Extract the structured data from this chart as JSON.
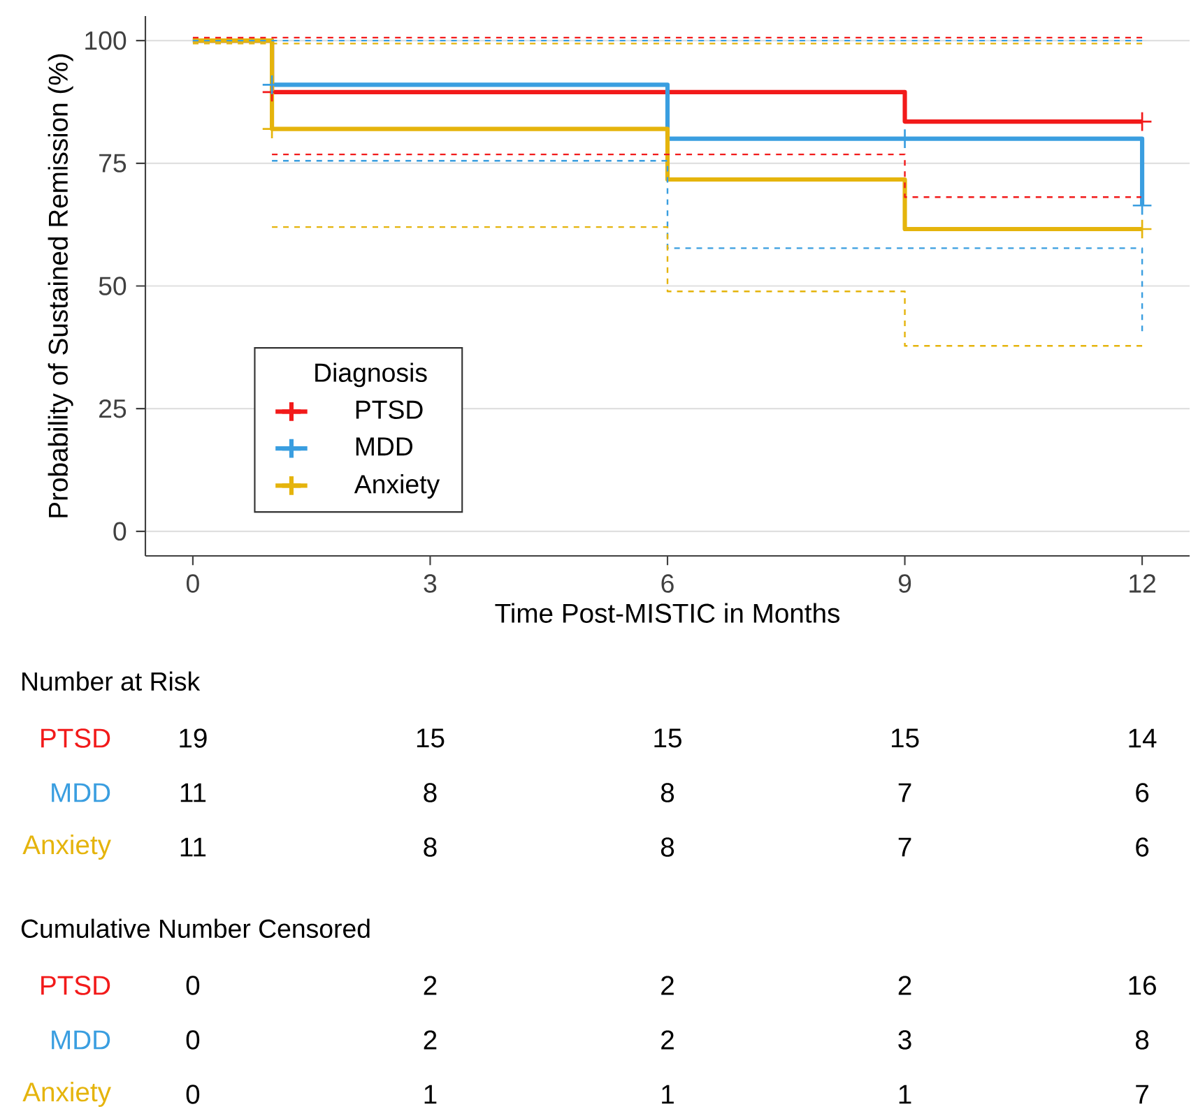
{
  "chart_data": [
    {
      "type": "step",
      "xlabel": "Time Post-MISTIC in Months",
      "ylabel": "Probability of Sustained Remission (%)",
      "legend_title": "Diagnosis",
      "legend": "bottom left",
      "grid": "y",
      "xlim": [
        -0.6,
        12.6
      ],
      "ylim": [
        -5,
        105
      ],
      "xticks": [
        0,
        3,
        6,
        9,
        12
      ],
      "yticks": [
        0,
        25,
        50,
        75,
        100
      ],
      "series": [
        {
          "line_style": "dashed",
          "color": "#f21a1a",
          "x": [
            0,
            12
          ],
          "values": [
            100.6,
            100.6
          ]
        },
        {
          "line_style": "dashed",
          "color": "#3a9ee0",
          "x": [
            0,
            12
          ],
          "values": [
            100,
            100
          ]
        },
        {
          "line_style": "dashed",
          "color": "#e5b40c",
          "x": [
            0,
            12
          ],
          "values": [
            99.4,
            99.4
          ]
        },
        {
          "line_style": "dashed",
          "color": "#f21a1a",
          "x": [
            1,
            9,
            12
          ],
          "values": [
            76.8,
            68.1,
            68.1
          ]
        },
        {
          "line_style": "dashed",
          "color": "#3a9ee0",
          "x": [
            1,
            6,
            12
          ],
          "values": [
            75.5,
            57.7,
            40.8
          ]
        },
        {
          "line_style": "dashed",
          "color": "#e5b40c",
          "x": [
            1,
            6,
            9,
            12
          ],
          "values": [
            62,
            48.9,
            37.8,
            37.8
          ]
        },
        {
          "name": "PTSD",
          "color": "#f21a1a",
          "x": [
            0,
            1,
            9,
            12
          ],
          "values": [
            100,
            89.5,
            83.5,
            83.5
          ]
        },
        {
          "name": "MDD",
          "color": "#3a9ee0",
          "x": [
            0,
            1,
            6,
            12
          ],
          "values": [
            100,
            91,
            80,
            66.4
          ]
        },
        {
          "name": "Anxiety",
          "color": "#e5b40c",
          "x": [
            0,
            1,
            6,
            9,
            12
          ],
          "values": [
            100,
            82,
            71.7,
            61.6,
            61.6
          ]
        },
        {
          "type": "scatter",
          "marker": "cross",
          "color": "#f21a1a",
          "x": [
            1,
            12
          ],
          "values": [
            89.5,
            83.5
          ]
        },
        {
          "type": "scatter",
          "marker": "cross",
          "color": "#3a9ee0",
          "x": [
            1,
            9,
            12
          ],
          "values": [
            91,
            80,
            66.4
          ]
        },
        {
          "type": "scatter",
          "marker": "cross",
          "color": "#e5b40c",
          "x": [
            1,
            12
          ],
          "values": [
            82,
            61.6
          ]
        }
      ]
    },
    {
      "type": "heatmap",
      "title": "Number at Risk",
      "categories": [
        null,
        null,
        null,
        null,
        null
      ],
      "y_categories": [
        "PTSD",
        "MDD",
        "Anxiety"
      ],
      "data_labels": true,
      "cells": [
        [
          19,
          15,
          15,
          15,
          14
        ],
        [
          11,
          8,
          8,
          7,
          6
        ],
        [
          11,
          8,
          8,
          7,
          6
        ]
      ]
    },
    {
      "type": "heatmap",
      "title": "Cumulative Number Censored",
      "categories": [
        null,
        null,
        null,
        null,
        null
      ],
      "y_categories": [
        "PTSD",
        "MDD",
        "Anxiety"
      ],
      "data_labels": true,
      "cells": [
        [
          0,
          2,
          2,
          2,
          16
        ],
        [
          0,
          2,
          2,
          3,
          8
        ],
        [
          0,
          1,
          1,
          1,
          7
        ]
      ]
    }
  ]
}
